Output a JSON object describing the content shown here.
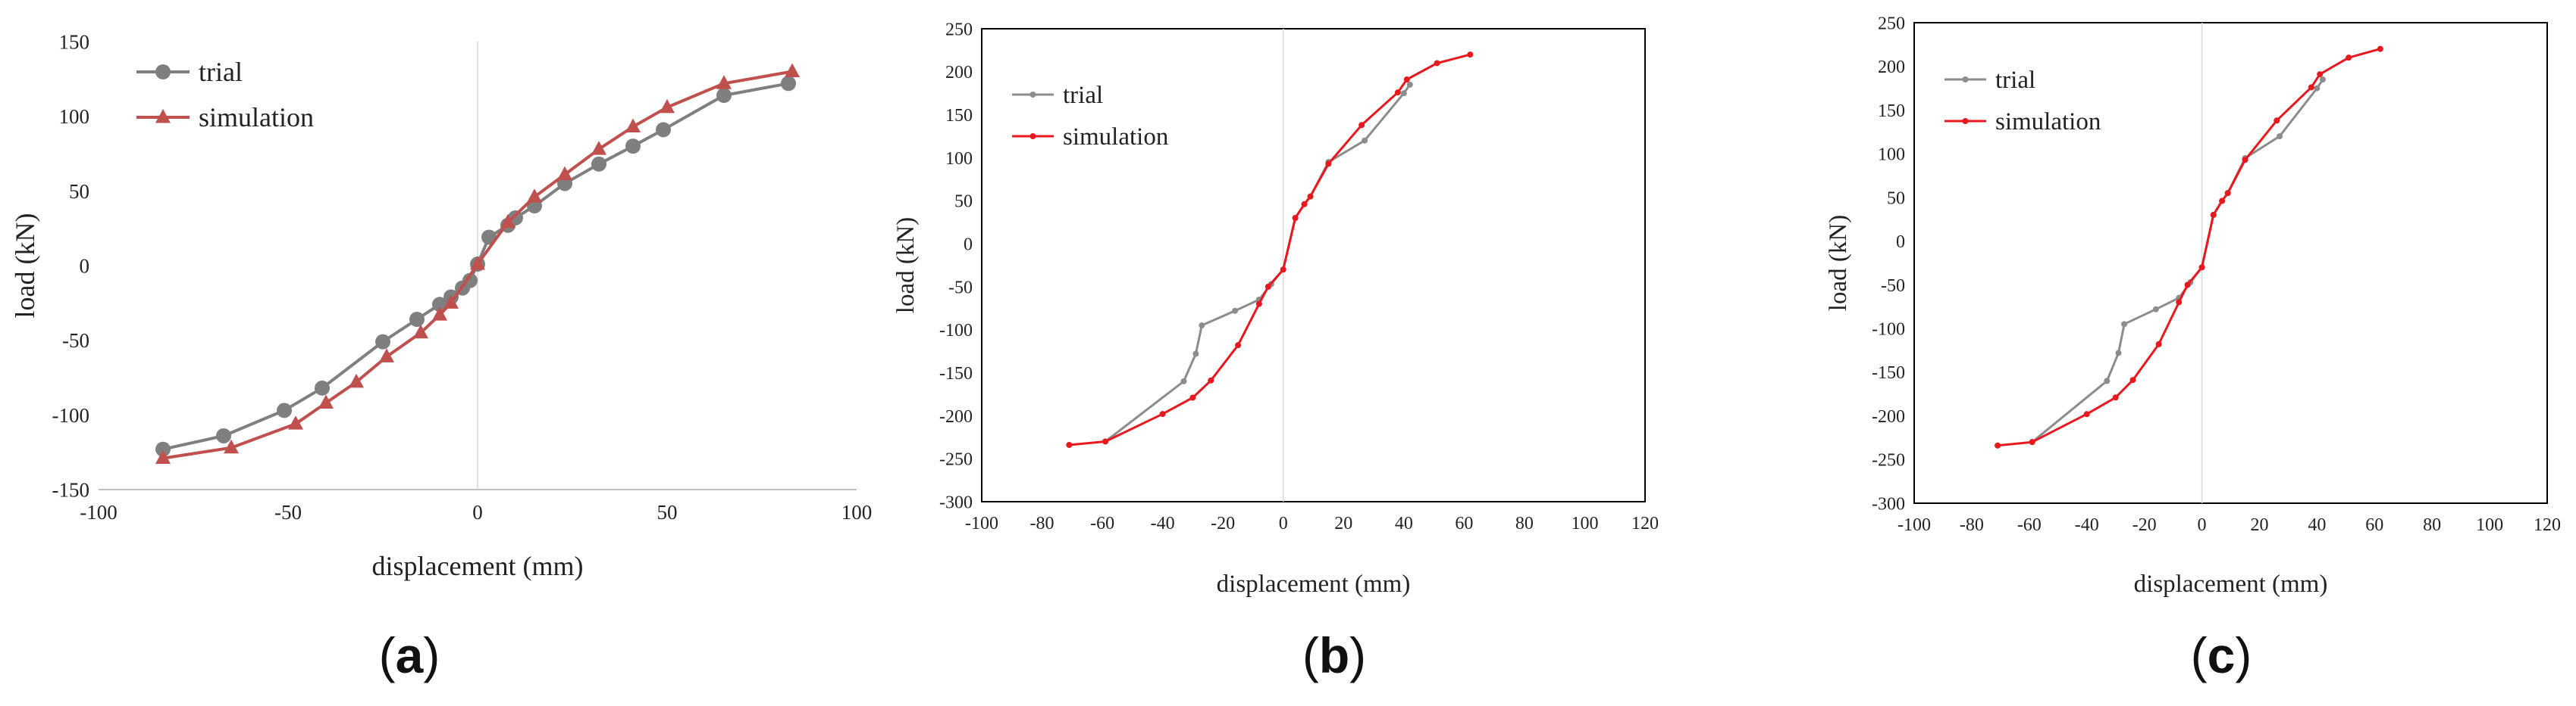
{
  "chart_data": [
    {
      "type": "line",
      "panel": "a",
      "xlabel": "displacement (mm)",
      "ylabel": "load (kN)",
      "xlim": [
        -100,
        100
      ],
      "ylim": [
        -150,
        150
      ],
      "xticks": [
        -100,
        -50,
        0,
        50,
        100
      ],
      "yticks": [
        -150,
        -100,
        -50,
        0,
        50,
        100,
        150
      ],
      "series": [
        {
          "name": "trial",
          "color": "#7f7f7f",
          "marker": "circle",
          "x": [
            -83,
            -67,
            -51,
            -41,
            -25,
            -16,
            -10,
            -7,
            -4,
            -2,
            0,
            3,
            8,
            10,
            15,
            23,
            32,
            41,
            49,
            65,
            82
          ],
          "y": [
            -123,
            -114,
            -97,
            -82,
            -51,
            -36,
            -26,
            -21,
            -15,
            -10,
            1,
            19,
            27,
            32,
            40,
            55,
            68,
            80,
            91,
            114,
            122
          ]
        },
        {
          "name": "simulation",
          "color": "#c0504d",
          "marker": "triangle",
          "x": [
            -83,
            -65,
            -48,
            -40,
            -32,
            -24,
            -15,
            -10,
            -7,
            0,
            8,
            15,
            23,
            32,
            41,
            50,
            65,
            83
          ],
          "y": [
            -129,
            -122,
            -106,
            -92,
            -78,
            -61,
            -45,
            -33,
            -25,
            1,
            29,
            46,
            61,
            78,
            93,
            106,
            122,
            130
          ]
        }
      ]
    },
    {
      "type": "line",
      "panel": "b",
      "xlabel": "displacement (mm)",
      "ylabel": "load (kN)",
      "xlim": [
        -100,
        120
      ],
      "ylim": [
        -300,
        250
      ],
      "xticks": [
        -100,
        -80,
        -60,
        -40,
        -20,
        0,
        20,
        40,
        60,
        80,
        100,
        120
      ],
      "yticks": [
        -300,
        -250,
        -200,
        -150,
        -100,
        -50,
        0,
        50,
        100,
        150,
        200,
        250
      ],
      "series": [
        {
          "name": "trial",
          "color": "#8c8c8c",
          "marker": "circle",
          "x": [
            -59,
            -33,
            -29,
            -27,
            -16,
            -8,
            -4,
            0,
            4,
            7,
            9,
            15,
            27,
            40,
            42
          ],
          "y": [
            -230,
            -160,
            -128,
            -95,
            -78,
            -65,
            -47,
            -30,
            30,
            46,
            55,
            95,
            120,
            175,
            185
          ]
        },
        {
          "name": "simulation",
          "color": "#e8191e",
          "marker": "circle",
          "x": [
            -71,
            -59,
            -40,
            -30,
            -24,
            -15,
            -8,
            -5,
            0,
            4,
            7,
            9,
            15,
            26,
            38,
            41,
            51,
            62
          ],
          "y": [
            -234,
            -230,
            -198,
            -179,
            -159,
            -118,
            -70,
            -50,
            -30,
            30,
            46,
            55,
            93,
            138,
            176,
            191,
            210,
            220
          ]
        }
      ]
    },
    {
      "type": "line",
      "panel": "c",
      "xlabel": "displacement (mm)",
      "ylabel": "load (kN)",
      "xlim": [
        -100,
        120
      ],
      "ylim": [
        -300,
        250
      ],
      "xticks": [
        -100,
        -80,
        -60,
        -40,
        -20,
        0,
        20,
        40,
        60,
        80,
        100,
        120
      ],
      "yticks": [
        -300,
        -250,
        -200,
        -150,
        -100,
        -50,
        0,
        50,
        100,
        150,
        200,
        250
      ],
      "series": [
        {
          "name": "trial",
          "color": "#8c8c8c",
          "marker": "circle",
          "x": [
            -59,
            -33,
            -29,
            -27,
            -16,
            -8,
            -4,
            0,
            4,
            7,
            9,
            15,
            27,
            40,
            42
          ],
          "y": [
            -230,
            -160,
            -128,
            -95,
            -78,
            -65,
            -47,
            -30,
            30,
            46,
            55,
            95,
            120,
            175,
            185
          ]
        },
        {
          "name": "simulation",
          "color": "#e8191e",
          "marker": "circle",
          "x": [
            -71,
            -59,
            -40,
            -30,
            -24,
            -15,
            -8,
            -5,
            0,
            4,
            7,
            9,
            15,
            26,
            38,
            41,
            51,
            62
          ],
          "y": [
            -234,
            -230,
            -198,
            -179,
            -159,
            -118,
            -70,
            -50,
            -30,
            30,
            46,
            55,
            93,
            138,
            176,
            191,
            210,
            220
          ]
        }
      ]
    }
  ],
  "captions": {
    "a": "a",
    "b": "b",
    "c": "c"
  }
}
